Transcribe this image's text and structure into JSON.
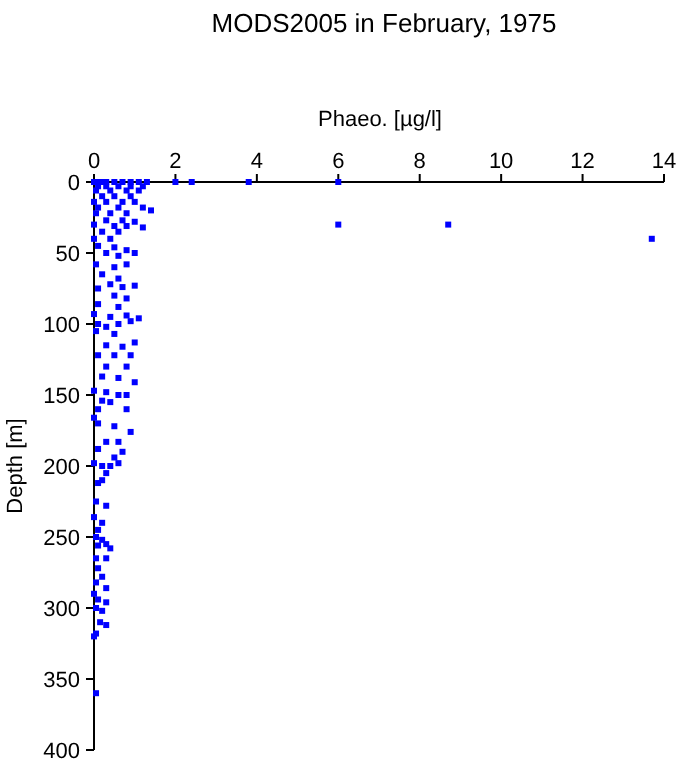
{
  "chart_data": {
    "type": "scatter",
    "title": "MODS2005 in February, 1975",
    "xlabel": "Phaeo. [µg/l]",
    "ylabel": "Depth [m]",
    "xlim": [
      0,
      14
    ],
    "xticks": [
      0,
      2,
      4,
      6,
      8,
      10,
      12,
      14
    ],
    "ylim": [
      400,
      0
    ],
    "yticks": [
      0,
      50,
      100,
      150,
      200,
      250,
      300,
      350,
      400
    ],
    "marker": "square",
    "grid": false,
    "series": [
      {
        "color": "#0000ff",
        "x": [
          0,
          0.1,
          0.2,
          0.3,
          0.5,
          0.7,
          0.9,
          1.1,
          1.3,
          2,
          2.4,
          3.8,
          6,
          0.1,
          0.3,
          0.6,
          0.9,
          1.2,
          0.05,
          0.4,
          0.8,
          1.1,
          0.2,
          0.5,
          0.9,
          0,
          0.3,
          0.7,
          1.0,
          0.1,
          0.6,
          1.2,
          1.4,
          0.05,
          0.4,
          0.8,
          0.3,
          0.7,
          1.0,
          0,
          0.5,
          0.8,
          1.2,
          6,
          8.7,
          0.2,
          0.6,
          0,
          0.4,
          13.7,
          0.1,
          0.5,
          0.8,
          1.0,
          0.3,
          0.6,
          0.05,
          0.5,
          0.8,
          0.2,
          0.6,
          0.4,
          0.7,
          1.0,
          0.1,
          0.5,
          0.8,
          0.1,
          0.6,
          0,
          0.4,
          0.8,
          0.1,
          0.3,
          0.6,
          0.9,
          1.1,
          0.05,
          0.5,
          0.3,
          0.7,
          1.0,
          0.1,
          0.5,
          0.9,
          0.3,
          0.8,
          0.2,
          0.6,
          1.0,
          0,
          0.3,
          0.6,
          0.8,
          0.2,
          0.4,
          0.1,
          0.8,
          0,
          0.1,
          0.5,
          0.9,
          0.3,
          0.6,
          0.1,
          0.7,
          0.5,
          0,
          0.2,
          0.4,
          0.6,
          0.3,
          0.1,
          0.2,
          0.05,
          0.3,
          0,
          0.2,
          0.1,
          0.05,
          0.2,
          0.3,
          0.1,
          0.4,
          0.05,
          0.3,
          0.1,
          0.2,
          0.05,
          0.3,
          0,
          0.1,
          0.3,
          0.05,
          0.2,
          0.15,
          0.3,
          0.05,
          0,
          0.05
        ],
        "values": [
          0,
          0,
          0,
          0,
          0,
          0,
          0,
          0,
          0,
          0,
          0,
          0,
          0,
          3,
          3,
          3,
          3,
          3,
          6,
          6,
          6,
          6,
          10,
          10,
          10,
          14,
          14,
          14,
          14,
          18,
          18,
          18,
          20,
          22,
          22,
          22,
          27,
          27,
          28,
          30,
          31,
          31,
          32,
          30,
          30,
          35,
          35,
          40,
          40,
          40,
          45,
          46,
          48,
          50,
          50,
          52,
          58,
          60,
          58,
          65,
          68,
          72,
          74,
          73,
          75,
          80,
          82,
          86,
          88,
          93,
          95,
          94,
          100,
          102,
          100,
          98,
          96,
          105,
          107,
          115,
          116,
          113,
          122,
          122,
          122,
          130,
          130,
          137,
          138,
          141,
          147,
          148,
          150,
          150,
          154,
          155,
          160,
          160,
          166,
          170,
          172,
          176,
          183,
          183,
          188,
          190,
          194,
          198,
          200,
          200,
          198,
          205,
          212,
          210,
          225,
          228,
          236,
          240,
          245,
          250,
          252,
          255,
          256,
          258,
          265,
          265,
          272,
          278,
          282,
          286,
          290,
          294,
          296,
          300,
          302,
          310,
          312,
          318,
          320,
          360
        ]
      }
    ]
  }
}
